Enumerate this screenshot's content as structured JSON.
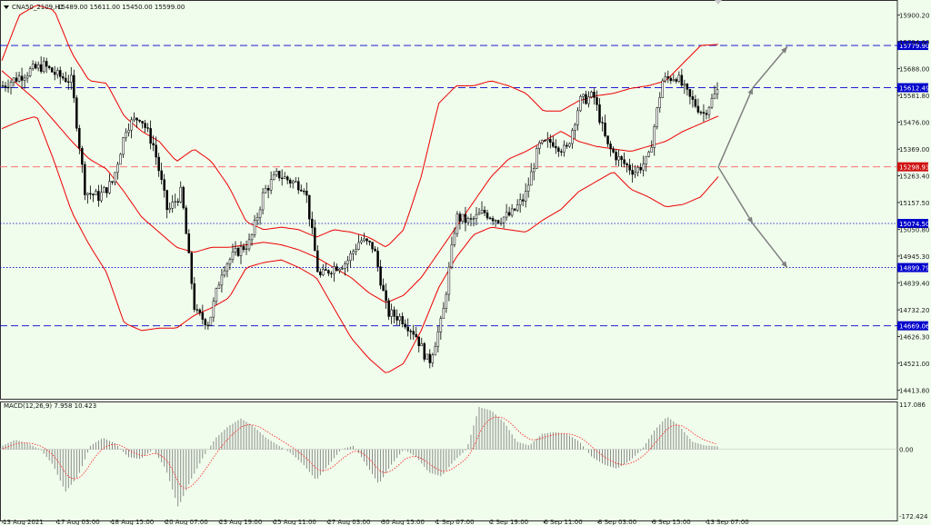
{
  "header": {
    "symbol": "CNA50_2109,H1",
    "ohlc": "15489.00 15611.00 15450.00 15599.00"
  },
  "chart_data": [
    {
      "type": "candlestick",
      "title": "CNA50_2109,H1",
      "ylim": [
        14380,
        15960
      ],
      "y_ticks": [
        "15900.20",
        "15794.60",
        "15688.00",
        "15581.80",
        "15476.00",
        "15369.00",
        "15263.40",
        "15157.50",
        "15050.80",
        "14945.30",
        "14839.40",
        "14732.20",
        "14626.30",
        "14521.00",
        "14413.80"
      ],
      "x_ticks": [
        "13 Aug 2021",
        "17 Aug 03:00",
        "18 Aug 15:00",
        "20 Aug 07:00",
        "23 Aug 19:00",
        "25 Aug 11:00",
        "27 Aug 03:00",
        "30 Aug 15:00",
        "1 Sep 07:00",
        "2 Sep 19:00",
        "6 Sep 11:00",
        "8 Sep 03:00",
        "9 Sep 15:00",
        "13 Sep 07:00"
      ],
      "price_levels": [
        {
          "label": "15779.90",
          "style": "dashed",
          "color": "#0000cc",
          "tag_color": "#0000cc"
        },
        {
          "label": "15612.49",
          "style": "dashed",
          "color": "#0000cc",
          "tag_color": "#0000cc"
        },
        {
          "label": "15298.93",
          "style": "dashed",
          "color": "#ff6060",
          "tag_color": "#d01010"
        },
        {
          "label": "15074.50",
          "style": "dotted",
          "color": "#0000cc",
          "tag_color": "#0000cc"
        },
        {
          "label": "14899.79",
          "style": "dotted",
          "color": "#0000cc",
          "tag_color": "#0000cc"
        },
        {
          "label": "14669.06",
          "style": "dashed",
          "color": "#0000cc",
          "tag_color": "#0000cc"
        }
      ],
      "close_path": [
        15620,
        15650,
        15680,
        15700,
        15660,
        15640,
        15200,
        15180,
        15240,
        15460,
        15500,
        15380,
        15120,
        15200,
        14720,
        14680,
        14900,
        14960,
        15000,
        15200,
        15270,
        15240,
        15220,
        14860,
        14900,
        14920,
        15010,
        14980,
        14720,
        14700,
        14640,
        14520,
        14700,
        15100,
        15080,
        15120,
        15090,
        15110,
        15180,
        15380,
        15400,
        15360,
        15560,
        15580,
        15380,
        15320,
        15280,
        15330,
        15640,
        15660,
        15570,
        15510,
        15599
      ],
      "bollinger": {
        "color": "#ee0000",
        "upper": [
          15720,
          15900,
          15940,
          15920,
          15750,
          15640,
          15630,
          15500,
          15440,
          15400,
          15320,
          15370,
          15320,
          15220,
          15080,
          15050,
          15060,
          15050,
          15020,
          15050,
          15040,
          15020,
          14980,
          15050,
          15260,
          15550,
          15620,
          15620,
          15640,
          15620,
          15590,
          15520,
          15520,
          15560,
          15580,
          15590,
          15610,
          15620,
          15640,
          15710,
          15780,
          15784
        ],
        "middle": [
          15680,
          15620,
          15560,
          15480,
          15400,
          15330,
          15290,
          15200,
          15100,
          15040,
          14980,
          14960,
          14980,
          14980,
          14990,
          15000,
          14990,
          14970,
          14940,
          14900,
          14860,
          14800,
          14760,
          14790,
          14860,
          14960,
          15060,
          15160,
          15260,
          15330,
          15360,
          15400,
          15440,
          15400,
          15380,
          15370,
          15360,
          15380,
          15400,
          15440,
          15470,
          15500
        ],
        "lower": [
          15450,
          15480,
          15500,
          15320,
          15120,
          14990,
          14880,
          14680,
          14650,
          14660,
          14660,
          14710,
          14740,
          14780,
          14900,
          14920,
          14930,
          14900,
          14860,
          14740,
          14620,
          14540,
          14480,
          14520,
          14650,
          14820,
          14940,
          15030,
          15060,
          15050,
          15040,
          15090,
          15130,
          15200,
          15240,
          15280,
          15210,
          15180,
          15140,
          15150,
          15180,
          15260
        ]
      },
      "forecast_arrows": [
        {
          "name": "bullish",
          "points": [
            [
              15298,
              0
            ],
            [
              15612,
              1
            ],
            [
              15775,
              2
            ]
          ]
        },
        {
          "name": "bearish",
          "points": [
            [
              15298,
              0
            ],
            [
              15074,
              1
            ],
            [
              14899,
              2
            ]
          ]
        }
      ]
    },
    {
      "type": "bar",
      "title": "MACD(12,26,9) 7.958 10.423",
      "indicator": "MACD(12,26,9)",
      "values_shown": [
        "7.958",
        "10.423"
      ],
      "ylim": [
        -172.424,
        117.086
      ],
      "y_ticks": [
        "117.086",
        "0.00",
        "-172.424"
      ],
      "histogram_keyframes": [
        10,
        25,
        15,
        0,
        -40,
        -110,
        -70,
        10,
        30,
        15,
        -20,
        -25,
        0,
        -50,
        -150,
        -80,
        -20,
        30,
        60,
        80,
        60,
        30,
        10,
        -10,
        -40,
        -80,
        -40,
        0,
        10,
        -40,
        -90,
        -40,
        0,
        -20,
        -60,
        -70,
        -30,
        0,
        110,
        100,
        70,
        20,
        10,
        40,
        45,
        40,
        20,
        -20,
        -40,
        -50,
        -30,
        0,
        50,
        85,
        60,
        20,
        10,
        8
      ],
      "signal_color": "#ff2020",
      "histogram_color": "#808080"
    }
  ]
}
